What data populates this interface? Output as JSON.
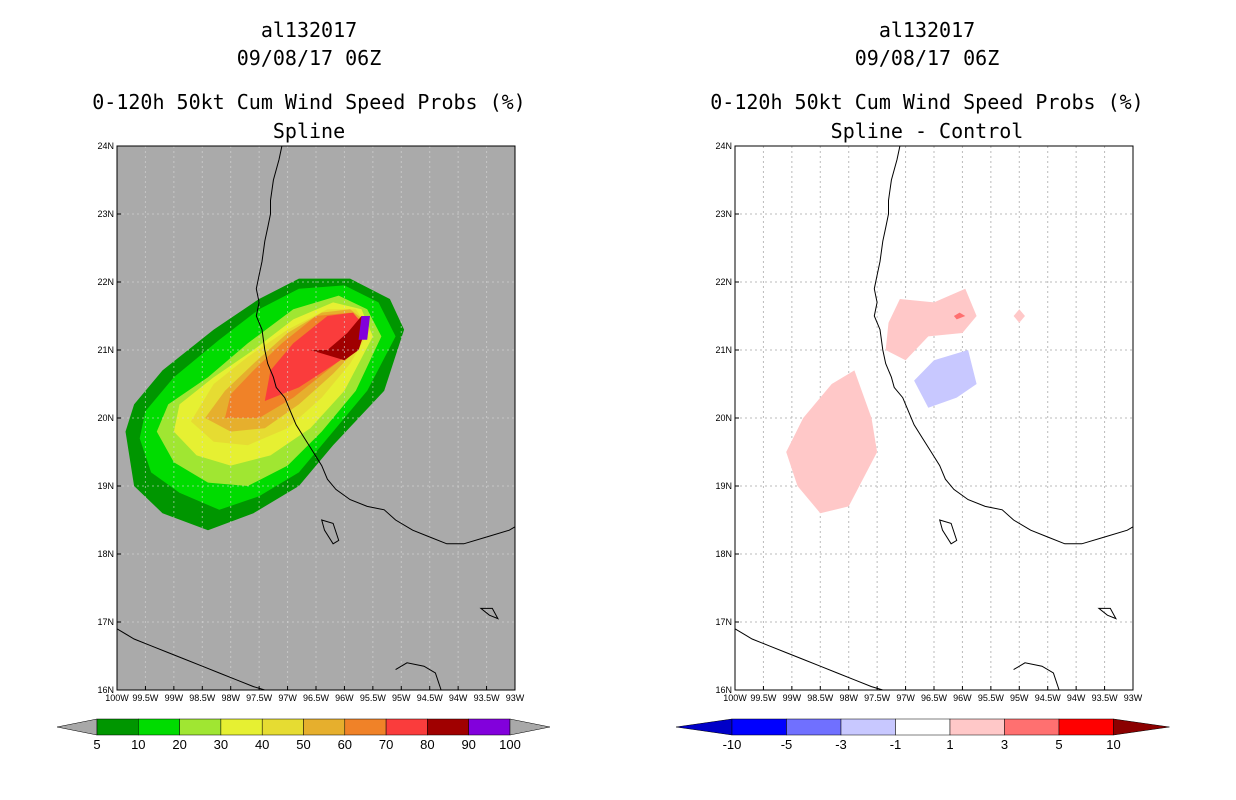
{
  "chart_data": [
    {
      "type": "heatmap",
      "title_lines": [
        "al132017",
        "09/08/17 06Z",
        "0-120h 50kt Cum Wind Speed Probs (%)",
        "Spline"
      ],
      "xlabel": "",
      "ylabel": "",
      "x_ticks": [
        "100W",
        "99.5W",
        "99W",
        "98.5W",
        "98W",
        "97.5W",
        "97W",
        "96.5W",
        "96W",
        "95.5W",
        "95W",
        "94.5W",
        "94W",
        "93.5W",
        "93W"
      ],
      "y_ticks": [
        "16N",
        "17N",
        "18N",
        "19N",
        "20N",
        "21N",
        "22N",
        "23N",
        "24N"
      ],
      "xlim": [
        -100,
        -93
      ],
      "ylim": [
        16,
        24
      ],
      "background_color": "#aaaaaa",
      "levels": [
        5,
        10,
        20,
        30,
        40,
        50,
        60,
        70,
        80,
        90,
        100
      ],
      "level_colors": [
        "#009600",
        "#00dc00",
        "#a0e632",
        "#e6f032",
        "#e6dc32",
        "#e6af2d",
        "#f08228",
        "#fa3c3c",
        "#a00000",
        "#8200dc"
      ],
      "contours": [
        {
          "level": 5,
          "color": "#009600",
          "lon": [
            -99.85,
            -99.7,
            -99.2,
            -98.4,
            -97.6,
            -96.8,
            -96.2,
            -95.3,
            -94.95,
            -95.2,
            -95.9,
            -96.8,
            -97.5,
            -98.3,
            -99.2,
            -99.7
          ],
          "lat": [
            19.8,
            19.0,
            18.6,
            18.35,
            18.6,
            19.0,
            19.6,
            20.4,
            21.3,
            21.75,
            22.05,
            22.05,
            21.75,
            21.3,
            20.7,
            20.2
          ]
        },
        {
          "level": 10,
          "color": "#00dc00",
          "lon": [
            -99.6,
            -99.4,
            -98.9,
            -98.2,
            -97.5,
            -96.8,
            -96.3,
            -95.6,
            -95.1,
            -95.4,
            -96.0,
            -96.8,
            -97.5,
            -98.2,
            -99.0,
            -99.5
          ],
          "lat": [
            19.7,
            19.2,
            18.9,
            18.65,
            18.85,
            19.2,
            19.7,
            20.4,
            21.2,
            21.7,
            21.95,
            21.9,
            21.6,
            21.15,
            20.6,
            20.1
          ]
        },
        {
          "level": 20,
          "color": "#a0e632",
          "lon": [
            -99.3,
            -99.0,
            -98.4,
            -97.7,
            -97.0,
            -96.4,
            -95.8,
            -95.35,
            -95.6,
            -96.1,
            -96.9,
            -97.7,
            -98.4,
            -99.1
          ],
          "lat": [
            19.8,
            19.35,
            19.05,
            19.0,
            19.3,
            19.8,
            20.4,
            21.2,
            21.6,
            21.8,
            21.6,
            21.1,
            20.6,
            20.2
          ]
        },
        {
          "level": 30,
          "color": "#e6f032",
          "lon": [
            -99.0,
            -98.6,
            -98.0,
            -97.3,
            -96.6,
            -96.0,
            -95.5,
            -95.7,
            -96.2,
            -96.9,
            -97.6,
            -98.3,
            -98.9
          ],
          "lat": [
            19.8,
            19.45,
            19.3,
            19.45,
            19.85,
            20.4,
            21.2,
            21.6,
            21.7,
            21.45,
            21.0,
            20.6,
            20.2
          ]
        },
        {
          "level": 40,
          "color": "#e6dc32",
          "lon": [
            -98.7,
            -98.3,
            -97.7,
            -97.0,
            -96.4,
            -95.9,
            -95.55,
            -95.8,
            -96.3,
            -97.0,
            -97.7,
            -98.3
          ],
          "lat": [
            19.95,
            19.65,
            19.6,
            19.85,
            20.3,
            20.8,
            21.3,
            21.6,
            21.6,
            21.3,
            20.9,
            20.5
          ]
        },
        {
          "level": 50,
          "color": "#e6af2d",
          "lon": [
            -98.45,
            -98.0,
            -97.4,
            -96.8,
            -96.2,
            -95.8,
            -95.6,
            -95.9,
            -96.4,
            -97.0,
            -97.6,
            -98.1
          ],
          "lat": [
            20.0,
            19.8,
            19.85,
            20.2,
            20.65,
            21.0,
            21.4,
            21.6,
            21.55,
            21.25,
            20.8,
            20.4
          ]
        },
        {
          "level": 60,
          "color": "#f08228",
          "lon": [
            -98.1,
            -97.5,
            -96.9,
            -96.3,
            -95.85,
            -95.65,
            -95.9,
            -96.5,
            -97.1,
            -97.6,
            -98.0
          ],
          "lat": [
            20.0,
            20.0,
            20.3,
            20.7,
            21.0,
            21.4,
            21.55,
            21.5,
            21.1,
            20.7,
            20.35
          ]
        },
        {
          "level": 70,
          "color": "#fa3c3c",
          "lon": [
            -97.4,
            -96.8,
            -96.25,
            -95.8,
            -95.65,
            -95.85,
            -96.3,
            -96.9,
            -97.3
          ],
          "lat": [
            20.25,
            20.45,
            20.75,
            21.0,
            21.35,
            21.55,
            21.5,
            21.1,
            20.7
          ]
        },
        {
          "level": 80,
          "color": "#a00000",
          "lon": [
            -96.6,
            -96.0,
            -95.75,
            -95.55,
            -95.7,
            -95.95,
            -96.3
          ],
          "lat": [
            21.0,
            20.85,
            21.0,
            21.5,
            21.5,
            21.25,
            21.0
          ]
        },
        {
          "level": 90,
          "color": "#8200dc",
          "lon": [
            -95.75,
            -95.6,
            -95.55,
            -95.7
          ],
          "lat": [
            21.15,
            21.15,
            21.5,
            21.5
          ]
        }
      ],
      "colorbar_labels": [
        "5",
        "10",
        "20",
        "30",
        "40",
        "50",
        "60",
        "70",
        "80",
        "90",
        "100"
      ]
    },
    {
      "type": "heatmap",
      "title_lines": [
        "al132017",
        "09/08/17 06Z",
        "0-120h 50kt Cum Wind Speed Probs (%)",
        "Spline - Control"
      ],
      "xlabel": "",
      "ylabel": "",
      "x_ticks": [
        "100W",
        "99.5W",
        "99W",
        "98.5W",
        "98W",
        "97.5W",
        "97W",
        "96.5W",
        "96W",
        "95.5W",
        "95W",
        "94.5W",
        "94W",
        "93.5W",
        "93W"
      ],
      "y_ticks": [
        "16N",
        "17N",
        "18N",
        "19N",
        "20N",
        "21N",
        "22N",
        "23N",
        "24N"
      ],
      "xlim": [
        -100,
        -93
      ],
      "ylim": [
        16,
        24
      ],
      "background_color": "#ffffff",
      "grid": true,
      "levels": [
        -10,
        -5,
        -3,
        -1,
        1,
        3,
        5,
        10
      ],
      "level_colors": [
        "#0000c8",
        "#0000ff",
        "#7070ff",
        "#c8c8ff",
        "#ffffff",
        "#ffc8c8",
        "#ff7070",
        "#ff0000",
        "#8b0000"
      ],
      "contours": [
        {
          "level": 1,
          "color": "#ffc8c8",
          "lon": [
            -99.1,
            -98.9,
            -98.5,
            -98.0,
            -97.5,
            -97.6,
            -97.9,
            -98.3,
            -98.8
          ],
          "lat": [
            19.5,
            19.0,
            18.6,
            18.7,
            19.5,
            20.0,
            20.7,
            20.5,
            20.0
          ]
        },
        {
          "level": 1,
          "color": "#ffc8c8",
          "lon": [
            -97.35,
            -97.0,
            -96.6,
            -96.0,
            -95.75,
            -95.95,
            -96.5,
            -97.1,
            -97.3
          ],
          "lat": [
            21.0,
            20.85,
            21.2,
            21.25,
            21.5,
            21.9,
            21.7,
            21.75,
            21.4
          ]
        },
        {
          "level": 1,
          "color": "#ffc8c8",
          "lon": [
            -95.0,
            -94.9,
            -95.0,
            -95.1
          ],
          "lat": [
            21.4,
            21.5,
            21.6,
            21.5
          ]
        },
        {
          "level": 3,
          "color": "#ff7070",
          "lon": [
            -96.1,
            -95.95,
            -96.05,
            -96.15
          ],
          "lat": [
            21.45,
            21.5,
            21.55,
            21.5
          ]
        },
        {
          "level": -1,
          "color": "#c8c8ff",
          "lon": [
            -96.85,
            -96.6,
            -96.1,
            -95.75,
            -95.9,
            -96.5,
            -96.85
          ],
          "lat": [
            20.55,
            20.15,
            20.3,
            20.5,
            21.0,
            20.85,
            20.55
          ]
        }
      ],
      "colorbar_labels": [
        "-10",
        "-5",
        "-3",
        "-1",
        "1",
        "3",
        "5",
        "10"
      ]
    }
  ],
  "panels": [
    {
      "title1": "al132017",
      "title2": "09/08/17 06Z",
      "title3": "0-120h 50kt Cum Wind Speed Probs (%)",
      "title4": "Spline"
    },
    {
      "title1": "al132017",
      "title2": "09/08/17 06Z",
      "title3": "0-120h 50kt Cum Wind Speed Probs (%)",
      "title4": "Spline - Control"
    }
  ],
  "coastline": {
    "lon": [
      -97.1,
      -97.15,
      -97.25,
      -97.3,
      -97.3,
      -97.35,
      -97.4,
      -97.45,
      -97.5,
      -97.55,
      -97.5,
      -97.55,
      -97.45,
      -97.4,
      -97.35,
      -97.25,
      -97.2,
      -97.05,
      -96.95,
      -96.85,
      -96.7,
      -96.55,
      -96.4,
      -96.3,
      -96.15,
      -95.9,
      -95.6,
      -95.3,
      -95.1,
      -94.8,
      -94.5,
      -94.2,
      -93.9,
      -93.5,
      -93.1,
      -93.0
    ],
    "lat": [
      24.0,
      23.8,
      23.5,
      23.2,
      23.0,
      22.8,
      22.6,
      22.3,
      22.1,
      21.9,
      21.7,
      21.5,
      21.3,
      21.0,
      20.8,
      20.6,
      20.45,
      20.3,
      20.1,
      19.9,
      19.7,
      19.5,
      19.3,
      19.1,
      18.95,
      18.8,
      18.7,
      18.65,
      18.5,
      18.35,
      18.25,
      18.15,
      18.15,
      18.25,
      18.35,
      18.4
    ]
  },
  "pacific_coast": {
    "lon": [
      -100.0,
      -99.7,
      -99.4,
      -99.1,
      -98.8,
      -98.5,
      -98.2,
      -97.9,
      -97.6,
      -97.4
    ],
    "lat": [
      16.9,
      16.75,
      16.65,
      16.55,
      16.45,
      16.35,
      16.25,
      16.15,
      16.05,
      16.0
    ]
  },
  "lagoon": {
    "lon": [
      -96.4,
      -96.2,
      -96.1,
      -96.2,
      -96.35
    ],
    "lat": [
      18.5,
      18.45,
      18.2,
      18.15,
      18.35
    ]
  },
  "isthmus_outline": {
    "lon": [
      -95.1,
      -94.9,
      -94.6,
      -94.4,
      -94.3
    ],
    "lat": [
      16.3,
      16.4,
      16.35,
      16.25,
      16.0
    ]
  },
  "right_island": {
    "lon": [
      -93.6,
      -93.4,
      -93.3,
      -93.45
    ],
    "lat": [
      17.2,
      17.2,
      17.05,
      17.1
    ]
  }
}
